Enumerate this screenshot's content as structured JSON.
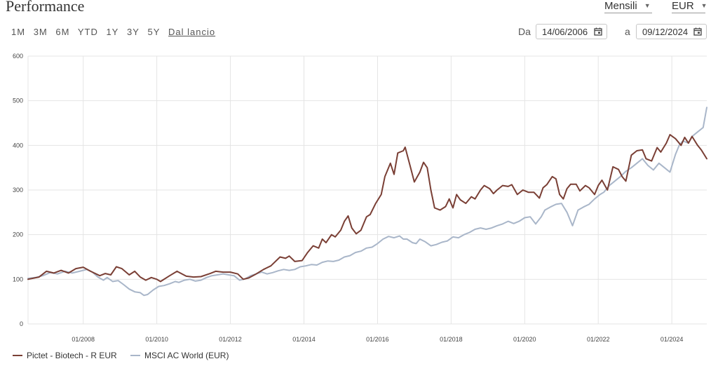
{
  "header": {
    "title": "Performance",
    "frequency": "Mensili",
    "currency": "EUR"
  },
  "periods": [
    "1M",
    "3M",
    "6M",
    "YTD",
    "1Y",
    "3Y",
    "5Y",
    "Dal lancio"
  ],
  "active_period": "Dal lancio",
  "date_range": {
    "from_label": "Da",
    "from": "14/06/2006",
    "to_label": "a",
    "to": "09/12/2024"
  },
  "colors": {
    "series1": "#7a3f35",
    "series2": "#a9b6c9",
    "grid": "#e4e4e4"
  },
  "chart_data": {
    "type": "line",
    "title": "Performance",
    "x_start": 2006.5,
    "x_end": 2024.95,
    "x_ticks": [
      2008,
      2010,
      2012,
      2014,
      2016,
      2018,
      2020,
      2022,
      2024
    ],
    "x_tick_labels": [
      "01/2008",
      "01/2010",
      "01/2012",
      "01/2014",
      "01/2016",
      "01/2018",
      "01/2020",
      "01/2022",
      "01/2024"
    ],
    "ylim": [
      0,
      600
    ],
    "y_ticks": [
      0,
      100,
      200,
      300,
      400,
      500,
      600
    ],
    "grid": true,
    "legend": "bottom-left",
    "series": [
      {
        "name": "Pictet - Biotech - R EUR",
        "points": [
          [
            2006.5,
            100
          ],
          [
            2006.8,
            105
          ],
          [
            2007.0,
            118
          ],
          [
            2007.2,
            114
          ],
          [
            2007.4,
            120
          ],
          [
            2007.6,
            114
          ],
          [
            2007.8,
            124
          ],
          [
            2008.0,
            127
          ],
          [
            2008.2,
            118
          ],
          [
            2008.45,
            108
          ],
          [
            2008.6,
            113
          ],
          [
            2008.75,
            110
          ],
          [
            2008.9,
            128
          ],
          [
            2009.05,
            124
          ],
          [
            2009.25,
            110
          ],
          [
            2009.4,
            118
          ],
          [
            2009.55,
            105
          ],
          [
            2009.7,
            98
          ],
          [
            2009.85,
            104
          ],
          [
            2010.0,
            100
          ],
          [
            2010.1,
            95
          ],
          [
            2010.35,
            108
          ],
          [
            2010.55,
            118
          ],
          [
            2010.8,
            107
          ],
          [
            2011.0,
            105
          ],
          [
            2011.2,
            106
          ],
          [
            2011.45,
            113
          ],
          [
            2011.6,
            118
          ],
          [
            2011.8,
            116
          ],
          [
            2012.0,
            116
          ],
          [
            2012.2,
            112
          ],
          [
            2012.35,
            100
          ],
          [
            2012.5,
            103
          ],
          [
            2012.7,
            112
          ],
          [
            2012.9,
            122
          ],
          [
            2013.1,
            130
          ],
          [
            2013.35,
            150
          ],
          [
            2013.5,
            147
          ],
          [
            2013.6,
            152
          ],
          [
            2013.75,
            140
          ],
          [
            2013.95,
            142
          ],
          [
            2014.1,
            160
          ],
          [
            2014.25,
            175
          ],
          [
            2014.4,
            170
          ],
          [
            2014.5,
            190
          ],
          [
            2014.6,
            182
          ],
          [
            2014.75,
            200
          ],
          [
            2014.85,
            195
          ],
          [
            2015.0,
            210
          ],
          [
            2015.1,
            230
          ],
          [
            2015.2,
            242
          ],
          [
            2015.3,
            215
          ],
          [
            2015.42,
            202
          ],
          [
            2015.55,
            210
          ],
          [
            2015.7,
            240
          ],
          [
            2015.8,
            245
          ],
          [
            2015.95,
            270
          ],
          [
            2016.1,
            290
          ],
          [
            2016.2,
            330
          ],
          [
            2016.35,
            360
          ],
          [
            2016.45,
            335
          ],
          [
            2016.55,
            383
          ],
          [
            2016.7,
            388
          ],
          [
            2016.75,
            396
          ],
          [
            2016.9,
            350
          ],
          [
            2017.0,
            318
          ],
          [
            2017.15,
            340
          ],
          [
            2017.25,
            362
          ],
          [
            2017.35,
            350
          ],
          [
            2017.45,
            300
          ],
          [
            2017.55,
            260
          ],
          [
            2017.7,
            255
          ],
          [
            2017.85,
            263
          ],
          [
            2017.95,
            280
          ],
          [
            2018.05,
            260
          ],
          [
            2018.15,
            290
          ],
          [
            2018.25,
            278
          ],
          [
            2018.4,
            270
          ],
          [
            2018.55,
            285
          ],
          [
            2018.65,
            280
          ],
          [
            2018.8,
            300
          ],
          [
            2018.9,
            310
          ],
          [
            2019.05,
            303
          ],
          [
            2019.15,
            292
          ],
          [
            2019.25,
            300
          ],
          [
            2019.4,
            310
          ],
          [
            2019.55,
            308
          ],
          [
            2019.65,
            312
          ],
          [
            2019.8,
            290
          ],
          [
            2019.95,
            300
          ],
          [
            2020.1,
            295
          ],
          [
            2020.25,
            295
          ],
          [
            2020.4,
            282
          ],
          [
            2020.5,
            305
          ],
          [
            2020.6,
            312
          ],
          [
            2020.75,
            330
          ],
          [
            2020.85,
            325
          ],
          [
            2020.95,
            290
          ],
          [
            2021.05,
            280
          ],
          [
            2021.15,
            303
          ],
          [
            2021.25,
            313
          ],
          [
            2021.4,
            313
          ],
          [
            2021.5,
            298
          ],
          [
            2021.65,
            310
          ],
          [
            2021.75,
            305
          ],
          [
            2021.9,
            290
          ],
          [
            2022.0,
            310
          ],
          [
            2022.1,
            322
          ],
          [
            2022.25,
            300
          ],
          [
            2022.4,
            352
          ],
          [
            2022.55,
            346
          ],
          [
            2022.65,
            330
          ],
          [
            2022.75,
            320
          ],
          [
            2022.9,
            378
          ],
          [
            2023.05,
            388
          ],
          [
            2023.2,
            390
          ],
          [
            2023.3,
            370
          ],
          [
            2023.45,
            365
          ],
          [
            2023.6,
            395
          ],
          [
            2023.7,
            385
          ],
          [
            2023.85,
            405
          ],
          [
            2023.95,
            424
          ],
          [
            2024.1,
            415
          ],
          [
            2024.25,
            400
          ],
          [
            2024.35,
            418
          ],
          [
            2024.45,
            405
          ],
          [
            2024.55,
            420
          ],
          [
            2024.7,
            400
          ],
          [
            2024.8,
            390
          ],
          [
            2024.95,
            370
          ]
        ]
      },
      {
        "name": "MSCI AC World (EUR)",
        "points": [
          [
            2006.5,
            102
          ],
          [
            2006.7,
            104
          ],
          [
            2006.9,
            108
          ],
          [
            2007.1,
            115
          ],
          [
            2007.3,
            112
          ],
          [
            2007.5,
            118
          ],
          [
            2007.7,
            114
          ],
          [
            2007.9,
            118
          ],
          [
            2008.1,
            122
          ],
          [
            2008.25,
            116
          ],
          [
            2008.4,
            105
          ],
          [
            2008.55,
            98
          ],
          [
            2008.65,
            104
          ],
          [
            2008.8,
            95
          ],
          [
            2008.95,
            97
          ],
          [
            2009.1,
            88
          ],
          [
            2009.25,
            78
          ],
          [
            2009.4,
            72
          ],
          [
            2009.55,
            70
          ],
          [
            2009.65,
            64
          ],
          [
            2009.75,
            66
          ],
          [
            2009.9,
            76
          ],
          [
            2010.05,
            84
          ],
          [
            2010.2,
            86
          ],
          [
            2010.35,
            90
          ],
          [
            2010.5,
            95
          ],
          [
            2010.6,
            93
          ],
          [
            2010.75,
            98
          ],
          [
            2010.9,
            100
          ],
          [
            2011.05,
            96
          ],
          [
            2011.2,
            98
          ],
          [
            2011.35,
            104
          ],
          [
            2011.5,
            108
          ],
          [
            2011.65,
            110
          ],
          [
            2011.8,
            112
          ],
          [
            2011.95,
            110
          ],
          [
            2012.1,
            108
          ],
          [
            2012.25,
            98
          ],
          [
            2012.4,
            101
          ],
          [
            2012.55,
            108
          ],
          [
            2012.7,
            112
          ],
          [
            2012.85,
            116
          ],
          [
            2013.0,
            112
          ],
          [
            2013.15,
            115
          ],
          [
            2013.3,
            119
          ],
          [
            2013.45,
            122
          ],
          [
            2013.6,
            120
          ],
          [
            2013.75,
            122
          ],
          [
            2013.9,
            128
          ],
          [
            2014.05,
            130
          ],
          [
            2014.2,
            133
          ],
          [
            2014.35,
            132
          ],
          [
            2014.5,
            138
          ],
          [
            2014.65,
            141
          ],
          [
            2014.8,
            140
          ],
          [
            2014.95,
            143
          ],
          [
            2015.1,
            150
          ],
          [
            2015.25,
            153
          ],
          [
            2015.4,
            160
          ],
          [
            2015.55,
            163
          ],
          [
            2015.7,
            170
          ],
          [
            2015.85,
            172
          ],
          [
            2016.0,
            180
          ],
          [
            2016.15,
            190
          ],
          [
            2016.3,
            196
          ],
          [
            2016.45,
            193
          ],
          [
            2016.6,
            197
          ],
          [
            2016.7,
            190
          ],
          [
            2016.8,
            190
          ],
          [
            2016.95,
            182
          ],
          [
            2017.05,
            180
          ],
          [
            2017.15,
            190
          ],
          [
            2017.3,
            184
          ],
          [
            2017.45,
            175
          ],
          [
            2017.6,
            178
          ],
          [
            2017.75,
            183
          ],
          [
            2017.9,
            186
          ],
          [
            2018.05,
            195
          ],
          [
            2018.2,
            193
          ],
          [
            2018.35,
            200
          ],
          [
            2018.5,
            205
          ],
          [
            2018.65,
            212
          ],
          [
            2018.8,
            215
          ],
          [
            2018.95,
            212
          ],
          [
            2019.1,
            215
          ],
          [
            2019.25,
            220
          ],
          [
            2019.4,
            224
          ],
          [
            2019.55,
            230
          ],
          [
            2019.7,
            225
          ],
          [
            2019.85,
            230
          ],
          [
            2020.0,
            238
          ],
          [
            2020.15,
            240
          ],
          [
            2020.3,
            224
          ],
          [
            2020.45,
            240
          ],
          [
            2020.55,
            255
          ],
          [
            2020.7,
            262
          ],
          [
            2020.85,
            268
          ],
          [
            2021.0,
            270
          ],
          [
            2021.15,
            250
          ],
          [
            2021.3,
            220
          ],
          [
            2021.45,
            255
          ],
          [
            2021.6,
            262
          ],
          [
            2021.75,
            268
          ],
          [
            2021.9,
            280
          ],
          [
            2022.05,
            290
          ],
          [
            2022.15,
            295
          ],
          [
            2022.3,
            310
          ],
          [
            2022.45,
            320
          ],
          [
            2022.6,
            330
          ],
          [
            2022.75,
            342
          ],
          [
            2022.9,
            350
          ],
          [
            2023.05,
            360
          ],
          [
            2023.2,
            370
          ],
          [
            2023.35,
            355
          ],
          [
            2023.5,
            345
          ],
          [
            2023.65,
            360
          ],
          [
            2023.8,
            350
          ],
          [
            2023.95,
            340
          ],
          [
            2024.1,
            380
          ],
          [
            2024.2,
            400
          ],
          [
            2024.3,
            410
          ],
          [
            2024.45,
            405
          ],
          [
            2024.55,
            420
          ],
          [
            2024.7,
            430
          ],
          [
            2024.85,
            440
          ],
          [
            2024.95,
            485
          ]
        ]
      }
    ]
  }
}
